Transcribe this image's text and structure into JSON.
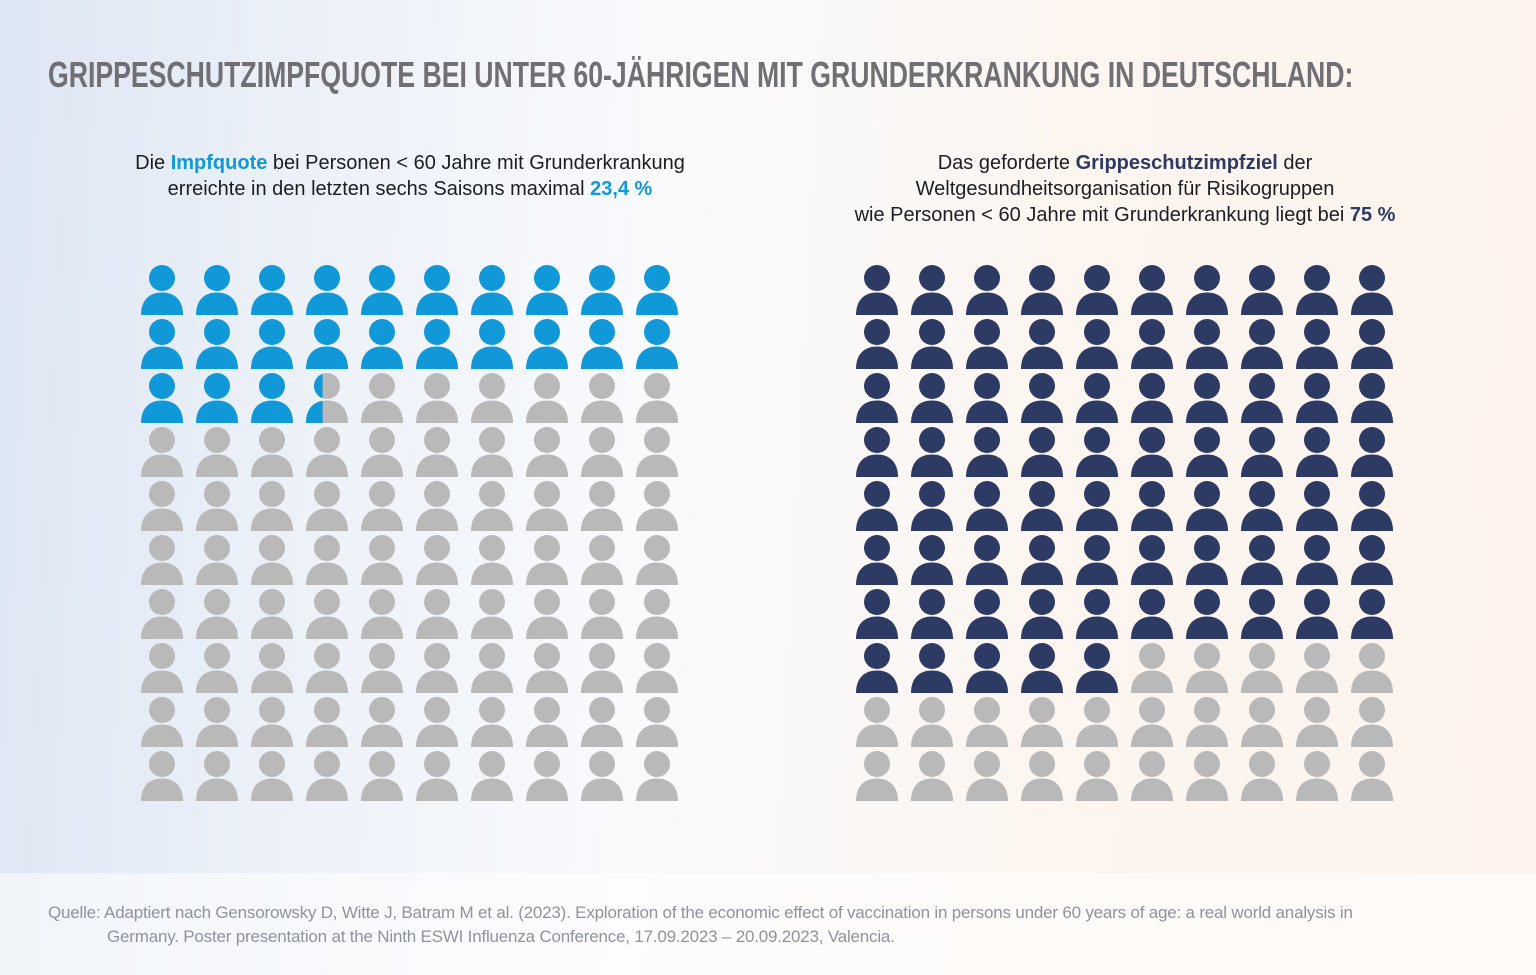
{
  "page": {
    "title": "GRIPPESCHUTZIMPFQUOTE BEI UNTER 60-JÄHRIGEN MIT GRUNDERKRANKUNG IN DEUTSCHLAND:",
    "source": {
      "line1": "Quelle: Adaptiert nach Gensorowsky D, Witte J, Batram M et al. (2023). Exploration of the economic effect of vaccination in persons under 60 years of age: a real world analysis in",
      "line2": "Germany. Poster presentation at the Ninth ESWI Influenza Conference, 17.09.2023 – 20.09.2023, Valencia."
    }
  },
  "colors": {
    "accent_blue": "#1198d8",
    "accent_navy": "#2d3a64",
    "icon_gray": "#b9b9b9",
    "title_gray": "#6f6f74",
    "source_gray": "#8f939d"
  },
  "chart_data": [
    {
      "type": "pictogram",
      "name": "impfquote-aktuell",
      "value": 23.4,
      "unit": "%",
      "total": 100,
      "rows": 10,
      "cols": 10,
      "fill_color": "#1198d8",
      "empty_color": "#b9b9b9",
      "subtitle_text": "Die Impfquote bei Personen < 60 Jahre mit Grunderkrankung erreichte in den letzten sechs Saisons maximal 23,4 %",
      "subtitle_segments": [
        {
          "text": "Die ",
          "bold": false
        },
        {
          "text": "Impfquote",
          "bold": true,
          "color": "#1198d8"
        },
        {
          "text": " bei Personen < 60 Jahre mit Grunderkrankung\nerreichte in den letzten sechs Saisons maximal ",
          "bold": false
        },
        {
          "text": "23,4 %",
          "bold": true,
          "color": "#1198d8"
        }
      ]
    },
    {
      "type": "pictogram",
      "name": "who-impfziel",
      "value": 75,
      "unit": "%",
      "total": 100,
      "rows": 10,
      "cols": 10,
      "fill_color": "#2d3a64",
      "empty_color": "#b9b9b9",
      "subtitle_text": "Das geforderte Grippeschutzimpfziel der Weltgesundheitsorganisation für Risikogruppen wie Personen < 60 Jahre mit Grunderkrankung liegt bei 75 %",
      "subtitle_segments": [
        {
          "text": "Das geforderte ",
          "bold": false
        },
        {
          "text": "Grippeschutzimpfziel",
          "bold": true,
          "color": "#2d3a64"
        },
        {
          "text": " der\nWeltgesundheitsorganisation für Risikogruppen\nwie Personen < 60 Jahre mit Grunderkrankung liegt bei ",
          "bold": false
        },
        {
          "text": "75 %",
          "bold": true,
          "color": "#2d3a64"
        }
      ]
    }
  ]
}
